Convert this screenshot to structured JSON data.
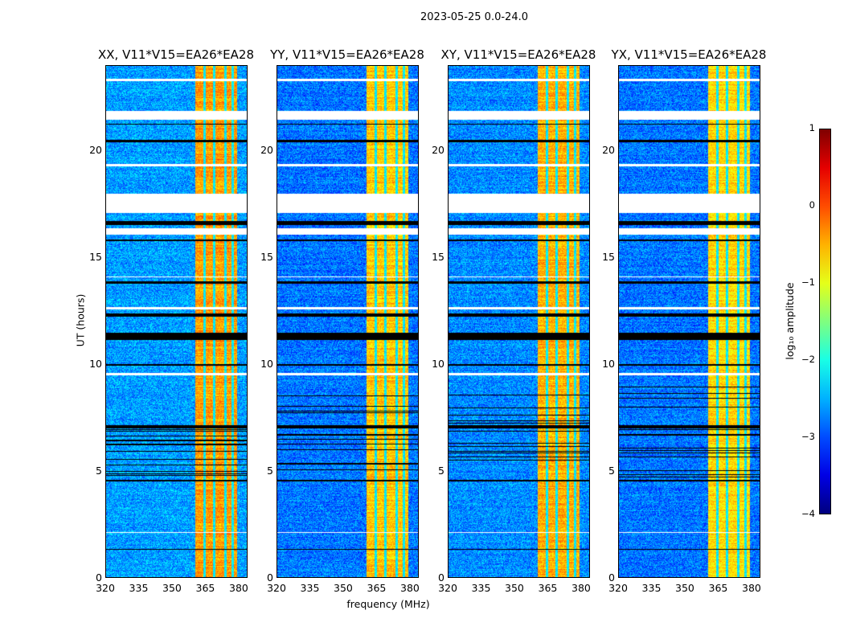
{
  "chart_data": {
    "type": "heatmap",
    "title": "2023-05-25 0.0-24.0",
    "xlabel": "frequency (MHz)",
    "ylabel": "UT (hours)",
    "xlim": [
      320,
      384
    ],
    "ylim": [
      0,
      24
    ],
    "xticks": [
      "320",
      "335",
      "350",
      "365",
      "380"
    ],
    "xtick_values": [
      320,
      335,
      350,
      365,
      380
    ],
    "yticks": [
      "0",
      "5",
      "10",
      "15",
      "20"
    ],
    "ytick_values": [
      0,
      5,
      10,
      15,
      20
    ],
    "panels": [
      {
        "title": "XX, V11*V15=EA26*EA28",
        "background_log_amp": -2.6,
        "band_log_amp": -0.4
      },
      {
        "title": "YY, V11*V15=EA26*EA28",
        "background_log_amp": -2.8,
        "band_log_amp": -0.6
      },
      {
        "title": "XY, V11*V15=EA26*EA28",
        "background_log_amp": -2.7,
        "band_log_amp": -0.5
      },
      {
        "title": "YX, V11*V15=EA26*EA28",
        "background_log_amp": -2.8,
        "band_log_amp": -0.7
      }
    ],
    "high_amplitude_band_mhz": [
      360.5,
      379.5
    ],
    "band_notches_mhz": [
      364.5,
      369,
      374,
      377.5
    ],
    "flagged_hours_white": [
      [
        17.1,
        18.0
      ],
      [
        21.5,
        21.9
      ],
      [
        16.1,
        16.4
      ],
      [
        23.3,
        23.4
      ],
      [
        19.3,
        19.4
      ],
      [
        2.1,
        2.15
      ],
      [
        9.5,
        9.6
      ],
      [
        12.6,
        12.7
      ],
      [
        14.1,
        14.15
      ]
    ],
    "zero_hours_black": [
      [
        16.55,
        16.75
      ],
      [
        11.15,
        11.5
      ],
      [
        12.25,
        12.4
      ],
      [
        20.45,
        20.55
      ],
      [
        21.25,
        21.3
      ],
      [
        1.3,
        1.35
      ],
      [
        7.0,
        7.15
      ],
      [
        4.5,
        4.6
      ],
      [
        9.95,
        10.0
      ],
      [
        13.8,
        13.9
      ],
      [
        15.8,
        15.85
      ]
    ],
    "colorbar": {
      "label": "log₁₀ amplitude",
      "range": [
        -4,
        1
      ],
      "ticks": [
        "1",
        "0",
        "−1",
        "−2",
        "−3",
        "−4"
      ],
      "tick_values": [
        1,
        0,
        -1,
        -2,
        -3,
        -4
      ],
      "colormap": "jet"
    }
  }
}
